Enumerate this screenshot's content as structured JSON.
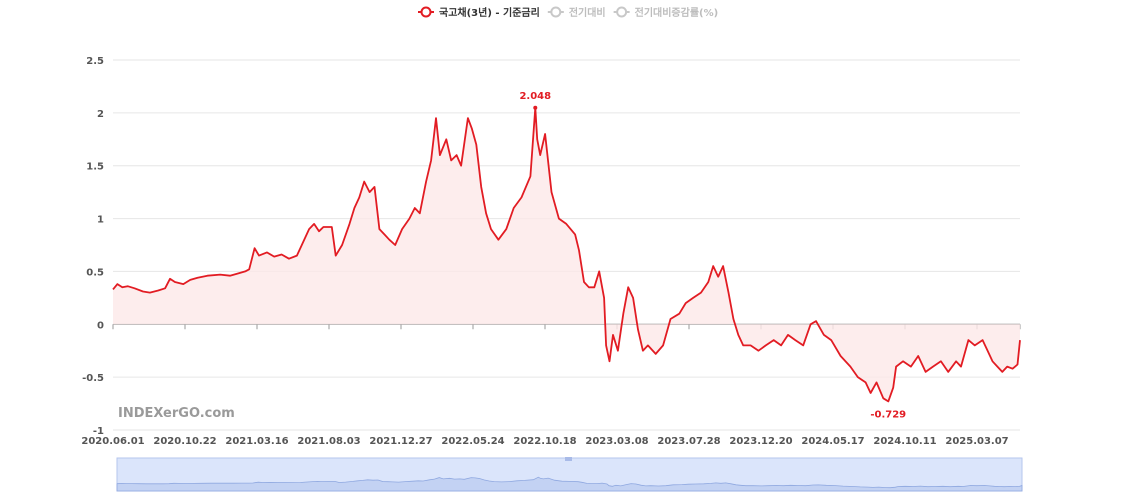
{
  "legend": {
    "items": [
      {
        "label": "국고채(3년) - 기준금리",
        "color": "#e21c23",
        "active": true
      },
      {
        "label": "전기대비",
        "color": "#c8c8c8",
        "active": false
      },
      {
        "label": "전기대비증감률(%)",
        "color": "#c8c8c8",
        "active": false
      }
    ]
  },
  "watermark": "INDEXerGO.com",
  "colors": {
    "series": "#e21c23",
    "area": "#fde9e9",
    "grid": "#e6e6e6",
    "slider": "#dbe5fb",
    "slider_border": "#b6c6ee"
  },
  "chart_data": {
    "type": "line",
    "series": [
      {
        "name": "국고채(3년) - 기준금리"
      }
    ],
    "x_start": "2020.06.01",
    "x_end": "2025.06.20",
    "x_tick_labels": [
      "2020.06.01",
      "2020.10.22",
      "2021.03.16",
      "2021.08.03",
      "2021.12.27",
      "2022.05.24",
      "2022.10.18",
      "2023.03.08",
      "2023.07.28",
      "2023.12.20",
      "2024.05.17",
      "2024.10.11",
      "2025.03.07"
    ],
    "y_ticks": [
      "2.5",
      "2",
      "1.5",
      "1",
      "0.5",
      "0",
      "-0.5",
      "-1"
    ],
    "ylim": [
      -1,
      2.5
    ],
    "grid": true,
    "points": [
      [
        "2020.06.01",
        0.33
      ],
      [
        "2020.06.10",
        0.38
      ],
      [
        "2020.06.20",
        0.35
      ],
      [
        "2020.07.01",
        0.36
      ],
      [
        "2020.07.15",
        0.34
      ],
      [
        "2020.08.01",
        0.31
      ],
      [
        "2020.08.15",
        0.3
      ],
      [
        "2020.09.01",
        0.32
      ],
      [
        "2020.09.15",
        0.34
      ],
      [
        "2020.09.25",
        0.43
      ],
      [
        "2020.10.05",
        0.4
      ],
      [
        "2020.10.22",
        0.38
      ],
      [
        "2020.11.05",
        0.42
      ],
      [
        "2020.11.20",
        0.44
      ],
      [
        "2020.12.10",
        0.46
      ],
      [
        "2021.01.05",
        0.47
      ],
      [
        "2021.01.25",
        0.46
      ],
      [
        "2021.02.10",
        0.48
      ],
      [
        "2021.02.25",
        0.5
      ],
      [
        "2021.03.05",
        0.52
      ],
      [
        "2021.03.16",
        0.72
      ],
      [
        "2021.03.25",
        0.65
      ],
      [
        "2021.04.10",
        0.68
      ],
      [
        "2021.04.25",
        0.64
      ],
      [
        "2021.05.10",
        0.66
      ],
      [
        "2021.05.25",
        0.62
      ],
      [
        "2021.06.10",
        0.65
      ],
      [
        "2021.06.20",
        0.75
      ],
      [
        "2021.07.05",
        0.9
      ],
      [
        "2021.07.15",
        0.95
      ],
      [
        "2021.07.25",
        0.88
      ],
      [
        "2021.08.03",
        0.92
      ],
      [
        "2021.08.20",
        0.92
      ],
      [
        "2021.08.28",
        0.65
      ],
      [
        "2021.09.10",
        0.75
      ],
      [
        "2021.09.25",
        0.95
      ],
      [
        "2021.10.05",
        1.1
      ],
      [
        "2021.10.15",
        1.2
      ],
      [
        "2021.10.25",
        1.35
      ],
      [
        "2021.11.05",
        1.25
      ],
      [
        "2021.11.15",
        1.3
      ],
      [
        "2021.11.25",
        0.9
      ],
      [
        "2021.12.05",
        0.85
      ],
      [
        "2021.12.15",
        0.8
      ],
      [
        "2021.12.27",
        0.75
      ],
      [
        "2022.01.10",
        0.9
      ],
      [
        "2022.01.25",
        1.0
      ],
      [
        "2022.02.05",
        1.1
      ],
      [
        "2022.02.15",
        1.05
      ],
      [
        "2022.02.28",
        1.35
      ],
      [
        "2022.03.10",
        1.55
      ],
      [
        "2022.03.20",
        1.95
      ],
      [
        "2022.03.28",
        1.6
      ],
      [
        "2022.04.10",
        1.75
      ],
      [
        "2022.04.20",
        1.55
      ],
      [
        "2022.05.01",
        1.6
      ],
      [
        "2022.05.10",
        1.5
      ],
      [
        "2022.05.24",
        1.95
      ],
      [
        "2022.06.01",
        1.85
      ],
      [
        "2022.06.10",
        1.7
      ],
      [
        "2022.06.20",
        1.3
      ],
      [
        "2022.06.30",
        1.05
      ],
      [
        "2022.07.10",
        0.9
      ],
      [
        "2022.07.25",
        0.8
      ],
      [
        "2022.08.10",
        0.9
      ],
      [
        "2022.08.25",
        1.1
      ],
      [
        "2022.09.10",
        1.2
      ],
      [
        "2022.09.28",
        1.4
      ],
      [
        "2022.10.08",
        2.048
      ],
      [
        "2022.10.12",
        1.75
      ],
      [
        "2022.10.18",
        1.6
      ],
      [
        "2022.10.28",
        1.8
      ],
      [
        "2022.11.10",
        1.25
      ],
      [
        "2022.11.25",
        1.0
      ],
      [
        "2022.12.10",
        0.95
      ],
      [
        "2022.12.28",
        0.85
      ],
      [
        "2023.01.05",
        0.7
      ],
      [
        "2023.01.15",
        0.4
      ],
      [
        "2023.01.25",
        0.35
      ],
      [
        "2023.02.05",
        0.35
      ],
      [
        "2023.02.15",
        0.5
      ],
      [
        "2023.02.25",
        0.25
      ],
      [
        "2023.03.01",
        -0.2
      ],
      [
        "2023.03.08",
        -0.35
      ],
      [
        "2023.03.15",
        -0.1
      ],
      [
        "2023.03.25",
        -0.25
      ],
      [
        "2023.04.05",
        0.1
      ],
      [
        "2023.04.15",
        0.35
      ],
      [
        "2023.04.25",
        0.25
      ],
      [
        "2023.05.05",
        -0.05
      ],
      [
        "2023.05.15",
        -0.25
      ],
      [
        "2023.05.25",
        -0.2
      ],
      [
        "2023.06.10",
        -0.28
      ],
      [
        "2023.06.25",
        -0.2
      ],
      [
        "2023.07.10",
        0.05
      ],
      [
        "2023.07.28",
        0.1
      ],
      [
        "2023.08.10",
        0.2
      ],
      [
        "2023.08.25",
        0.25
      ],
      [
        "2023.09.10",
        0.3
      ],
      [
        "2023.09.25",
        0.4
      ],
      [
        "2023.10.05",
        0.55
      ],
      [
        "2023.10.15",
        0.45
      ],
      [
        "2023.10.25",
        0.55
      ],
      [
        "2023.11.05",
        0.3
      ],
      [
        "2023.11.15",
        0.05
      ],
      [
        "2023.11.25",
        -0.1
      ],
      [
        "2023.12.05",
        -0.2
      ],
      [
        "2023.12.20",
        -0.2
      ],
      [
        "2024.01.05",
        -0.25
      ],
      [
        "2024.01.20",
        -0.2
      ],
      [
        "2024.02.05",
        -0.15
      ],
      [
        "2024.02.20",
        -0.2
      ],
      [
        "2024.03.05",
        -0.1
      ],
      [
        "2024.03.20",
        -0.15
      ],
      [
        "2024.04.05",
        -0.2
      ],
      [
        "2024.04.20",
        0.0
      ],
      [
        "2024.05.01",
        0.03
      ],
      [
        "2024.05.17",
        -0.1
      ],
      [
        "2024.06.01",
        -0.15
      ],
      [
        "2024.06.20",
        -0.3
      ],
      [
        "2024.07.10",
        -0.4
      ],
      [
        "2024.07.25",
        -0.5
      ],
      [
        "2024.08.10",
        -0.55
      ],
      [
        "2024.08.20",
        -0.65
      ],
      [
        "2024.09.01",
        -0.55
      ],
      [
        "2024.09.15",
        -0.7
      ],
      [
        "2024.09.25",
        -0.729
      ],
      [
        "2024.10.05",
        -0.6
      ],
      [
        "2024.10.11",
        -0.4
      ],
      [
        "2024.10.25",
        -0.35
      ],
      [
        "2024.11.10",
        -0.4
      ],
      [
        "2024.11.25",
        -0.3
      ],
      [
        "2024.12.10",
        -0.45
      ],
      [
        "2024.12.25",
        -0.4
      ],
      [
        "2025.01.10",
        -0.35
      ],
      [
        "2025.01.25",
        -0.45
      ],
      [
        "2025.02.10",
        -0.35
      ],
      [
        "2025.02.20",
        -0.4
      ],
      [
        "2025.03.07",
        -0.15
      ],
      [
        "2025.03.20",
        -0.2
      ],
      [
        "2025.04.05",
        -0.15
      ],
      [
        "2025.04.15",
        -0.25
      ],
      [
        "2025.04.25",
        -0.35
      ],
      [
        "2025.05.05",
        -0.4
      ],
      [
        "2025.05.15",
        -0.45
      ],
      [
        "2025.05.25",
        -0.4
      ],
      [
        "2025.06.05",
        -0.42
      ],
      [
        "2025.06.15",
        -0.38
      ],
      [
        "2025.06.20",
        -0.15
      ]
    ],
    "max_label": {
      "date": "2022.10.08",
      "value": 2.048,
      "text": "2.048"
    },
    "min_label": {
      "date": "2024.09.25",
      "value": -0.729,
      "text": "-0.729"
    }
  }
}
